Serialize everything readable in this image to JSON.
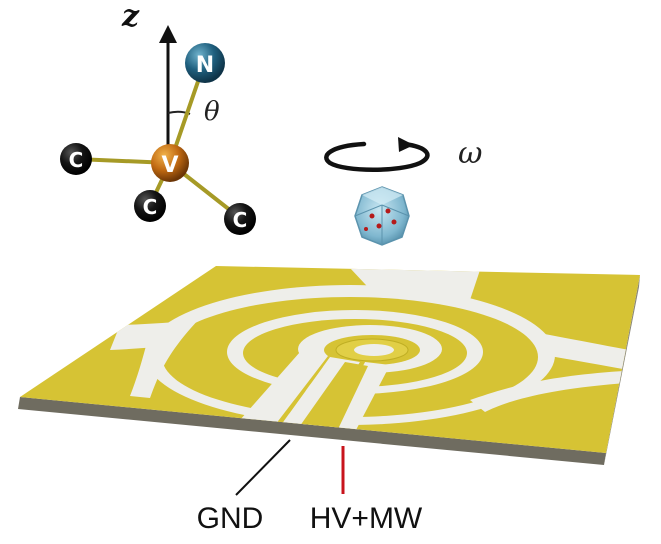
{
  "molecule": {
    "axis_label": "z",
    "angle_label": "θ",
    "atoms": {
      "top": "N",
      "center": "V",
      "left": "C",
      "bottom": "C",
      "right": "C"
    }
  },
  "rotation": {
    "label": "ω"
  },
  "device": {
    "labels": {
      "ground": "GND",
      "signal": "HV+MW"
    },
    "colors": {
      "gold": "#d6c334",
      "gold_dark": "#bfae23",
      "substrate": "#eeeeea",
      "edge": "#6f6c60",
      "signal_line": "#c8141c"
    }
  }
}
